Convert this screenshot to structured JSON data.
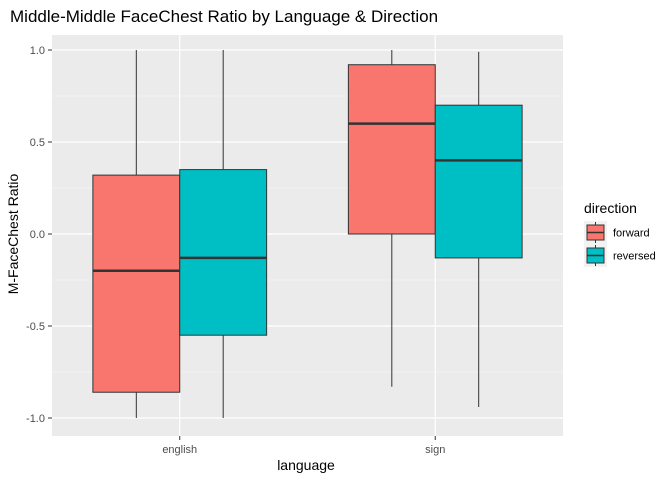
{
  "chart_data": {
    "type": "boxplot",
    "title": "Middle-Middle FaceChest Ratio by Language & Direction",
    "xlabel": "language",
    "ylabel": "M-FaceChest Ratio",
    "ylim": [
      -1.08,
      1.0
    ],
    "yticks": [
      -1.0,
      -0.5,
      0.0,
      0.5,
      1.0
    ],
    "ytick_labels": [
      "-1.0",
      "-0.5",
      "0.0",
      "0.5",
      "1.0"
    ],
    "categories": [
      "english",
      "sign"
    ],
    "grid": true,
    "legend": {
      "title": "direction",
      "placement": "right"
    },
    "series": [
      {
        "name": "forward",
        "color": "#F8766D",
        "boxes": [
          {
            "category": "english",
            "min": -1.0,
            "q1": -0.86,
            "median": -0.2,
            "q3": 0.32,
            "max": 1.0
          },
          {
            "category": "sign",
            "min": -0.83,
            "q1": 0.0,
            "median": 0.6,
            "q3": 0.92,
            "max": 1.0
          }
        ]
      },
      {
        "name": "reversed",
        "color": "#00BFC4",
        "boxes": [
          {
            "category": "english",
            "min": -1.0,
            "q1": -0.55,
            "median": -0.13,
            "q3": 0.35,
            "max": 1.0
          },
          {
            "category": "sign",
            "min": -0.94,
            "q1": -0.13,
            "median": 0.4,
            "q3": 0.7,
            "max": 0.99
          }
        ]
      }
    ]
  }
}
